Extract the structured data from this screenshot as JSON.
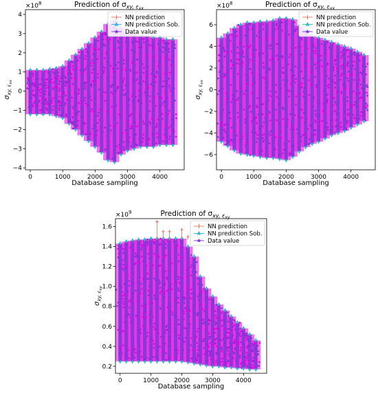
{
  "colors": {
    "nn": "#e8705a",
    "sob": "#2fb6d8",
    "data": "#7a35d6",
    "band": "#e000e0"
  },
  "chart_data": [
    {
      "type": "scatter",
      "title": "Prediction of σ",
      "title_sub": "xy, ε",
      "title_sub2": "xx",
      "xlabel": "Database sampling",
      "ylabel": "σ",
      "ylabel_sub": "xy, ε",
      "ylabel_sub2": "xx",
      "exponent": "×10",
      "exponent_power": "8",
      "xlim": [
        -150,
        4750
      ],
      "ylim": [
        -4.1,
        4.25
      ],
      "xticks": [
        0,
        1000,
        2000,
        3000,
        4000
      ],
      "xtick_labels": [
        "0",
        "1000",
        "2000",
        "3000",
        "4000"
      ],
      "yticks": [
        -4,
        -3,
        -2,
        -1,
        0,
        1,
        2,
        3,
        4
      ],
      "ytick_labels": [
        "−4",
        "−3",
        "−2",
        "−1",
        "0",
        "1",
        "2",
        "3",
        "4"
      ],
      "legend": [
        "NN prediction",
        "NN prediction Sob.",
        "Data value"
      ],
      "legend_position": "top-right",
      "groups_x": [
        0,
        200,
        400,
        600,
        800,
        1000,
        1200,
        1400,
        1600,
        1800,
        2000,
        2200,
        2400,
        2600,
        2800,
        3000,
        3200,
        3400,
        3600,
        3800,
        4000,
        4200,
        4400
      ],
      "groups_max": [
        1.1,
        1.1,
        1.1,
        1.15,
        1.2,
        1.3,
        1.6,
        1.9,
        2.2,
        2.5,
        2.8,
        3.1,
        3.5,
        3.7,
        3.3,
        3.1,
        3.0,
        2.9,
        2.9,
        2.8,
        2.8,
        2.7,
        2.7
      ],
      "groups_min": [
        -1.2,
        -1.2,
        -1.2,
        -1.2,
        -1.3,
        -1.4,
        -1.7,
        -2.0,
        -2.3,
        -2.6,
        -2.9,
        -3.2,
        -3.6,
        -3.7,
        -3.3,
        -3.1,
        -3.0,
        -2.9,
        -2.9,
        -2.9,
        -2.8,
        -2.8,
        -2.8
      ]
    },
    {
      "type": "scatter",
      "title": "Prediction of σ",
      "title_sub": "xy, ε",
      "title_sub2": "xx",
      "xlabel": "Database sampling",
      "ylabel": "σ",
      "ylabel_sub": "xy, ε",
      "ylabel_sub2": "xx",
      "exponent": "×10",
      "exponent_power": "8",
      "xlim": [
        -150,
        4750
      ],
      "ylim": [
        -7.4,
        7.4
      ],
      "xticks": [
        0,
        1000,
        2000,
        3000,
        4000
      ],
      "xtick_labels": [
        "0",
        "1000",
        "2000",
        "3000",
        "4000"
      ],
      "yticks": [
        -6,
        -4,
        -2,
        0,
        2,
        4,
        6
      ],
      "ytick_labels": [
        "−6",
        "−4",
        "−2",
        "0",
        "2",
        "4",
        "6"
      ],
      "legend": [
        "NN prediction",
        "NN prediction Sob.",
        "Data value"
      ],
      "legend_position": "top-right",
      "groups_x": [
        0,
        200,
        400,
        600,
        800,
        1000,
        1200,
        1400,
        1600,
        1800,
        2000,
        2200,
        2400,
        2600,
        2800,
        3000,
        3200,
        3400,
        3600,
        3800,
        4000,
        4200,
        4400
      ],
      "groups_max": [
        4.8,
        5.2,
        5.7,
        6.0,
        6.2,
        6.2,
        6.3,
        6.3,
        6.4,
        6.6,
        6.6,
        6.5,
        5.9,
        5.5,
        5.1,
        4.8,
        4.6,
        4.4,
        4.2,
        4.0,
        3.8,
        3.5,
        3.2
      ],
      "groups_min": [
        -4.8,
        -5.2,
        -5.6,
        -5.9,
        -6.0,
        -6.1,
        -6.2,
        -6.3,
        -6.3,
        -6.4,
        -6.5,
        -6.2,
        -5.7,
        -5.3,
        -5.0,
        -4.8,
        -4.5,
        -4.2,
        -4.0,
        -3.8,
        -3.5,
        -3.2,
        -2.9
      ]
    },
    {
      "type": "scatter",
      "title": "Prediction of σ",
      "title_sub": "xy, ε",
      "title_sub2": "xy",
      "xlabel": "Database sampling",
      "ylabel": "σ",
      "ylabel_sub": "xy, ε",
      "ylabel_sub2": "xy",
      "exponent": "×10",
      "exponent_power": "9",
      "xlim": [
        -150,
        4750
      ],
      "ylim": [
        0.13,
        1.68
      ],
      "xticks": [
        0,
        1000,
        2000,
        3000,
        4000
      ],
      "xtick_labels": [
        "0",
        "1000",
        "2000",
        "3000",
        "4000"
      ],
      "yticks": [
        0.2,
        0.4,
        0.6,
        0.8,
        1.0,
        1.2,
        1.4,
        1.6
      ],
      "ytick_labels": [
        "0.2",
        "0.4",
        "0.6",
        "0.8",
        "1.0",
        "1.2",
        "1.4",
        "1.6"
      ],
      "legend": [
        "NN prediction",
        "NN prediction Sob.",
        "Data value"
      ],
      "legend_position": "top-right",
      "groups_x": [
        0,
        200,
        400,
        600,
        800,
        1000,
        1200,
        1400,
        1600,
        1800,
        2000,
        2200,
        2400,
        2600,
        2800,
        3000,
        3200,
        3400,
        3600,
        3800,
        4000,
        4200,
        4400
      ],
      "groups_max": [
        1.43,
        1.45,
        1.46,
        1.47,
        1.47,
        1.48,
        1.48,
        1.48,
        1.48,
        1.48,
        1.48,
        1.4,
        1.3,
        1.1,
        0.98,
        0.9,
        0.82,
        0.76,
        0.7,
        0.64,
        0.58,
        0.52,
        0.46
      ],
      "groups_min": [
        0.25,
        0.25,
        0.25,
        0.25,
        0.25,
        0.25,
        0.25,
        0.25,
        0.25,
        0.25,
        0.25,
        0.24,
        0.23,
        0.22,
        0.21,
        0.2,
        0.2,
        0.19,
        0.19,
        0.18,
        0.18,
        0.17,
        0.17
      ],
      "outliers": [
        [
          1400,
          1.55
        ],
        [
          1600,
          1.55
        ],
        [
          2000,
          1.57
        ],
        [
          2200,
          1.5
        ],
        [
          1200,
          1.65
        ]
      ]
    }
  ]
}
